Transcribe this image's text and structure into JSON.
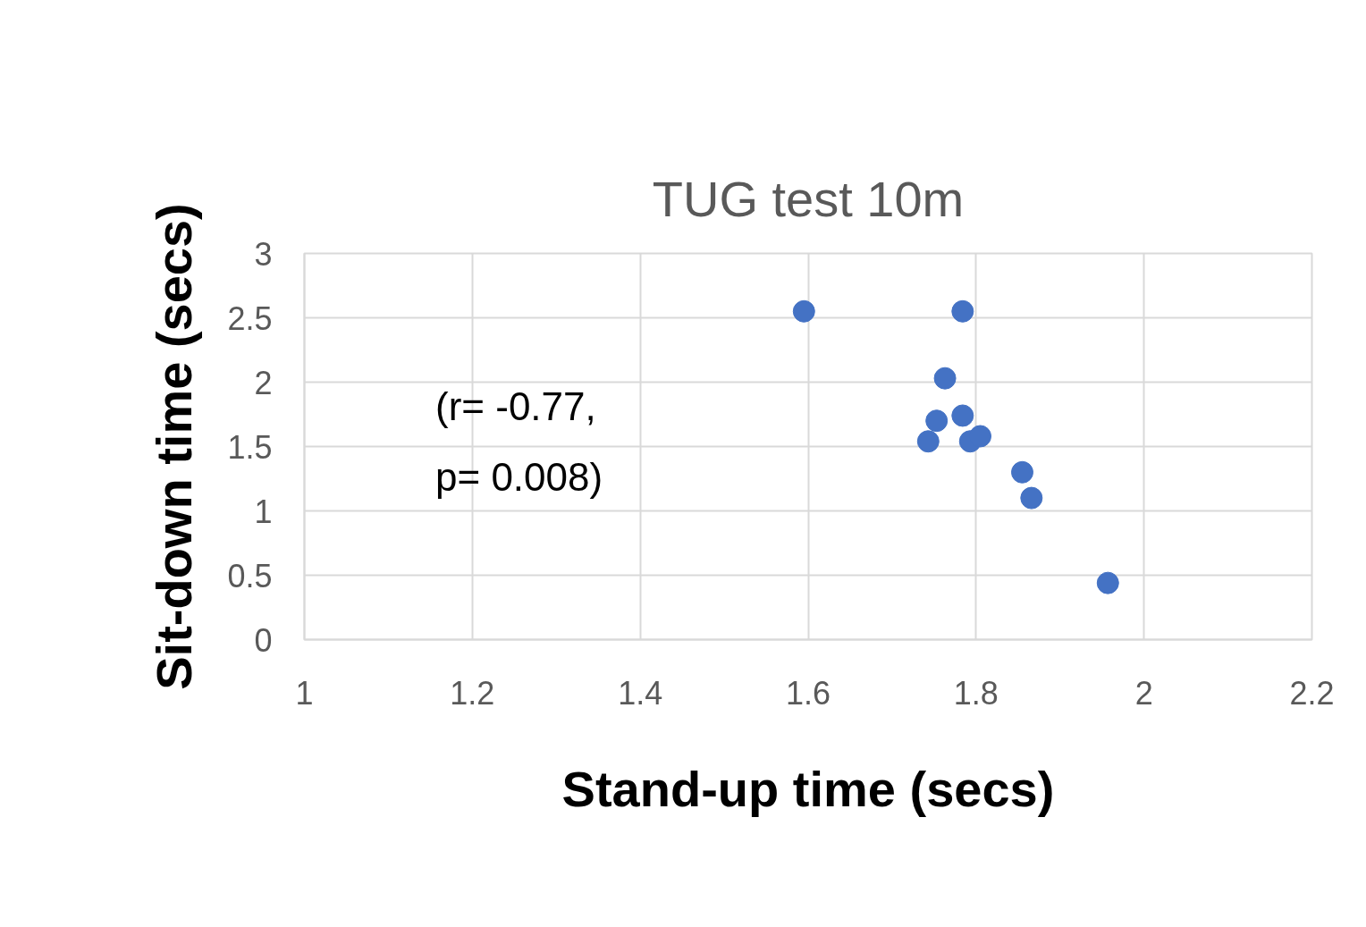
{
  "chart_data": {
    "type": "scatter",
    "title": "TUG test 10m",
    "xlabel": "Stand-up time (secs)",
    "ylabel": "Sit-down time (secs)",
    "x": [
      1.595,
      1.784,
      1.763,
      1.753,
      1.784,
      1.743,
      1.793,
      1.805,
      1.855,
      1.866,
      1.957
    ],
    "series": [
      {
        "color": "#4472c4",
        "values": [
          2.55,
          2.55,
          2.03,
          1.7,
          1.74,
          1.54,
          1.54,
          1.58,
          1.3,
          1.1,
          0.44
        ]
      }
    ],
    "xlim": [
      1,
      2.2
    ],
    "xticks": [
      1,
      1.2,
      1.4,
      1.6,
      1.8,
      2,
      2.2
    ],
    "ylim": [
      0,
      3
    ],
    "yticks": [
      0,
      0.5,
      1,
      1.5,
      2,
      2.5,
      3
    ],
    "grid": true,
    "marker": "circle",
    "annotations": [
      "(r= -0.77,\np= 0.008)"
    ]
  }
}
